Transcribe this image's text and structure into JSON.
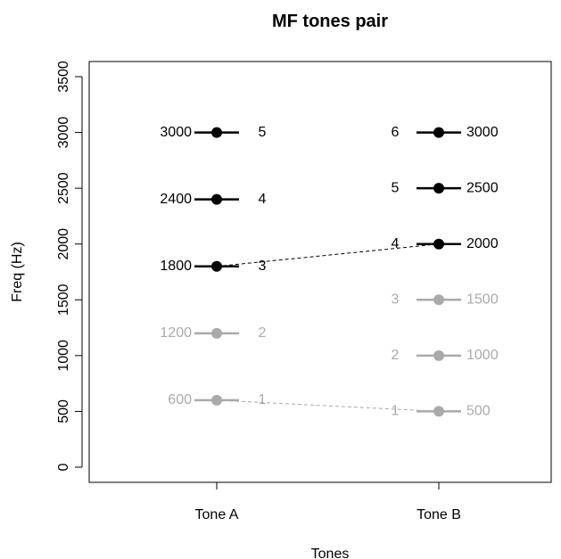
{
  "chart_data": {
    "type": "scatter",
    "title": "MF tones pair",
    "xlabel": "Tones",
    "ylabel": "Freq (Hz)",
    "categories": [
      "Tone A",
      "Tone B"
    ],
    "ylim": [
      0,
      3500
    ],
    "yticks": [
      0,
      500,
      1000,
      1500,
      2000,
      2500,
      3000,
      3500
    ],
    "grid": false,
    "colors": {
      "active": "#000000",
      "inactive": "#aaaaaa"
    },
    "series": [
      {
        "category": "Tone A",
        "points": [
          {
            "index": "1",
            "freq": 600,
            "freq_label": "600",
            "active": false
          },
          {
            "index": "2",
            "freq": 1200,
            "freq_label": "1200",
            "active": false
          },
          {
            "index": "3",
            "freq": 1800,
            "freq_label": "1800",
            "active": true
          },
          {
            "index": "4",
            "freq": 2400,
            "freq_label": "2400",
            "active": true
          },
          {
            "index": "5",
            "freq": 3000,
            "freq_label": "3000",
            "active": true
          }
        ]
      },
      {
        "category": "Tone B",
        "points": [
          {
            "index": "1",
            "freq": 500,
            "freq_label": "500",
            "active": false
          },
          {
            "index": "2",
            "freq": 1000,
            "freq_label": "1000",
            "active": false
          },
          {
            "index": "3",
            "freq": 1500,
            "freq_label": "1500",
            "active": false
          },
          {
            "index": "4",
            "freq": 2000,
            "freq_label": "2000",
            "active": true
          },
          {
            "index": "5",
            "freq": 2500,
            "freq_label": "2500",
            "active": true
          },
          {
            "index": "6",
            "freq": 3000,
            "freq_label": "3000",
            "active": true
          }
        ]
      }
    ],
    "connections": [
      {
        "from": 1800,
        "to": 2000,
        "active": true
      },
      {
        "from": 600,
        "to": 500,
        "active": false
      }
    ]
  }
}
